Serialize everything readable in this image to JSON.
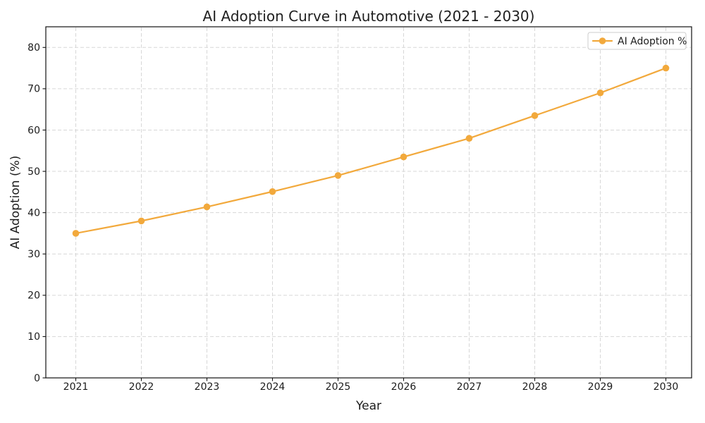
{
  "chart_data": {
    "type": "line",
    "title": "AI Adoption Curve in Automotive (2021 - 2030)",
    "xlabel": "Year",
    "ylabel": "AI Adoption (%)",
    "x": [
      2021,
      2022,
      2023,
      2024,
      2025,
      2026,
      2027,
      2028,
      2029,
      2030
    ],
    "series": [
      {
        "name": "AI Adoption %",
        "values": [
          35,
          38,
          41.4,
          45.1,
          49,
          53.5,
          58,
          63.5,
          69,
          75
        ],
        "color": "#F2A93C",
        "marker": "circle"
      }
    ],
    "ylim": [
      0,
      85
    ],
    "yticks": [
      0,
      10,
      20,
      30,
      40,
      50,
      60,
      70,
      80
    ],
    "grid": true,
    "grid_linestyle": "dashed",
    "legend_position": "upper right",
    "background": "#ffffff"
  }
}
